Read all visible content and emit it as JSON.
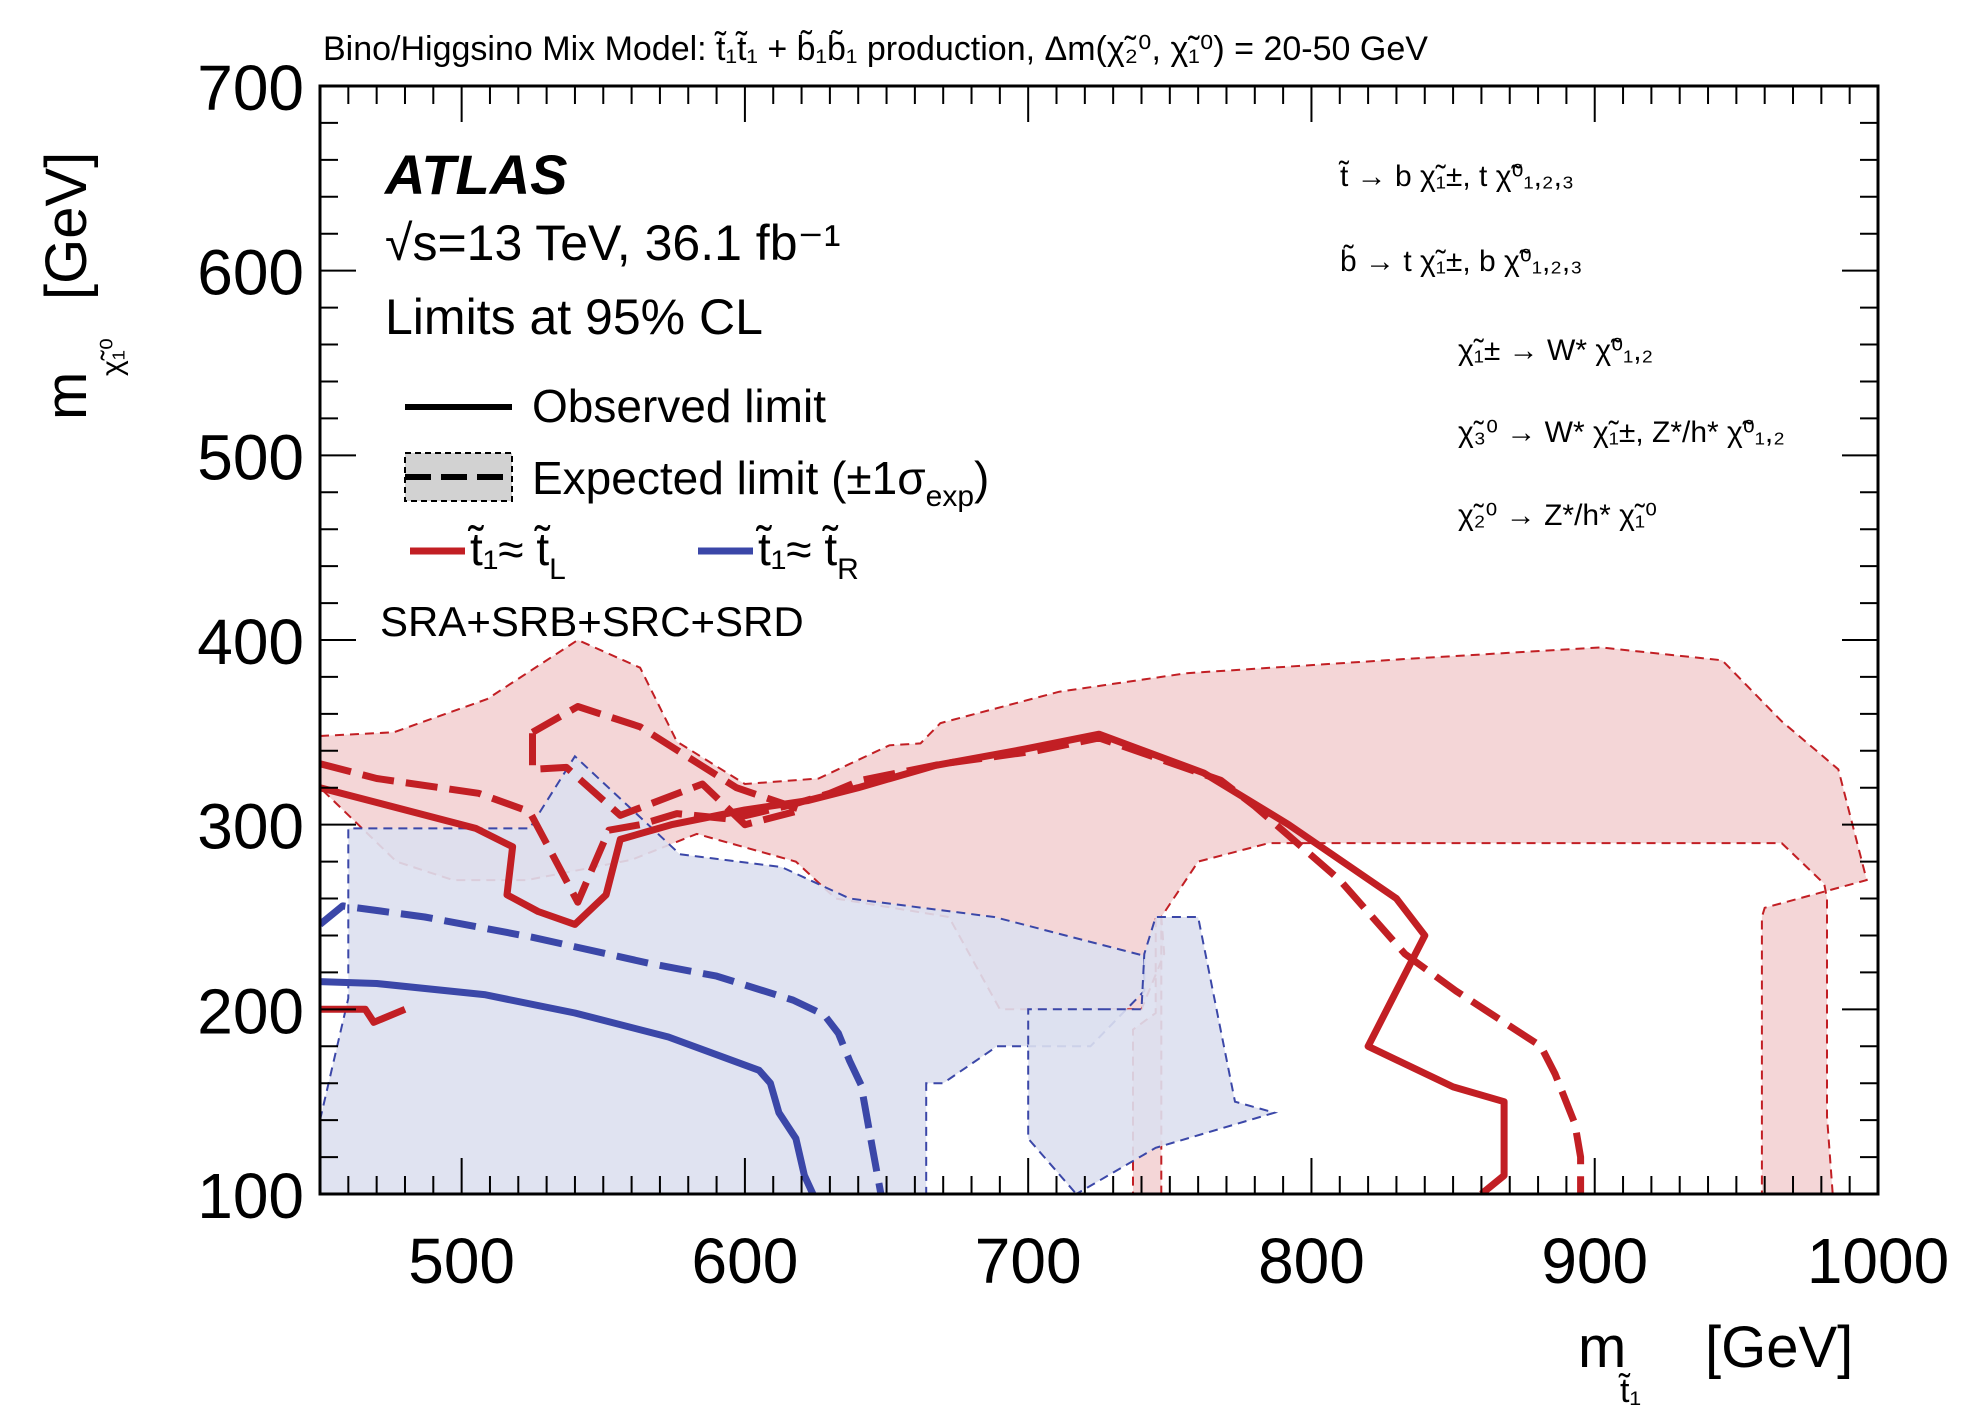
{
  "chart_data": {
    "type": "line",
    "title": "Bino/Higgsino Mix Model:  t̃₁t̃₁ + b̃₁b̃₁ production, Δm(χ̃₂⁰, χ̃₁⁰) = 20-50 GeV",
    "xlabel": "m",
    "xlabel_sub": "t̃₁",
    "xlabel_unit": "[GeV]",
    "ylabel": "m",
    "ylabel_sub": "χ̃₁⁰",
    "ylabel_unit": "[GeV]",
    "xlim": [
      450,
      1000
    ],
    "ylim": [
      100,
      700
    ],
    "x_ticks": [
      "500",
      "600",
      "700",
      "800",
      "900",
      "1000"
    ],
    "y_ticks": [
      "100",
      "200",
      "300",
      "400",
      "500",
      "600",
      "700"
    ],
    "x_tick_values": [
      500,
      600,
      700,
      800,
      900,
      1000
    ],
    "y_tick_values": [
      100,
      200,
      300,
      400,
      500,
      600,
      700
    ],
    "colors": {
      "red": "#c21f24",
      "blue": "#3b47a8",
      "red_band": "#f2cfd0",
      "blue_band": "#dde0ef",
      "overlap_band": "#d9bcc8"
    },
    "atlas_label": "ATLAS",
    "energy_label": "√s=13 TeV, 36.1 fb⁻¹",
    "cl_label": "Limits at 95% CL",
    "legend": {
      "observed": "Observed limit",
      "expected": "Expected limit (±1σ",
      "expected_sub": "exp",
      "expected_close": ")",
      "red_series": "t̃₁≈ t̃",
      "red_series_sub": "L",
      "blue_series": "t̃₁≈ t̃",
      "blue_series_sub": "R",
      "regions": "SRA+SRB+SRC+SRD"
    },
    "decays": [
      "t̃  →  b χ̃₁±, t χ̃⁰₁,₂,₃",
      "b̃  →  t χ̃₁±, b χ̃⁰₁,₂,₃",
      "χ̃₁± → W* χ̃⁰₁,₂",
      "χ̃₃⁰ → W* χ̃₁±, Z*/h* χ̃⁰₁,₂",
      "χ̃₂⁰ → Z*/h* χ̃₁⁰"
    ],
    "series": [
      {
        "name": "tL expected band",
        "kind": "band",
        "color": "red",
        "points": [
          [
            450,
            348
          ],
          [
            476,
            350
          ],
          [
            509,
            368
          ],
          [
            541,
            400
          ],
          [
            563,
            385
          ],
          [
            576,
            345
          ],
          [
            600,
            322
          ],
          [
            626,
            325
          ],
          [
            651,
            343
          ],
          [
            662,
            344
          ],
          [
            669,
            355
          ],
          [
            711,
            372
          ],
          [
            756,
            382
          ],
          [
            836,
            390
          ],
          [
            902,
            396
          ],
          [
            945,
            389
          ],
          [
            966,
            356
          ],
          [
            986,
            330
          ],
          [
            996,
            270
          ],
          [
            960,
            255
          ],
          [
            959,
            250
          ],
          [
            959,
            100
          ],
          [
            984,
            100
          ],
          [
            982,
            142
          ],
          [
            982,
            260
          ],
          [
            981,
            268
          ],
          [
            966,
            290
          ],
          [
            910,
            290
          ],
          [
            853,
            290
          ],
          [
            785,
            290
          ],
          [
            760,
            280
          ],
          [
            747,
            250
          ],
          [
            747,
            100
          ],
          [
            737,
            100
          ],
          [
            737,
            164
          ],
          [
            737,
            189
          ],
          [
            745,
            198
          ],
          [
            745,
            250
          ],
          [
            747,
            250
          ],
          [
            748,
            230
          ],
          [
            740,
            200
          ],
          [
            726,
            200
          ],
          [
            700,
            200
          ],
          [
            690,
            200
          ],
          [
            690,
            200
          ],
          [
            672,
            250
          ],
          [
            632,
            260
          ],
          [
            618,
            280
          ],
          [
            583,
            295
          ],
          [
            560,
            281
          ],
          [
            523,
            270
          ],
          [
            497,
            270
          ],
          [
            477,
            280
          ],
          [
            450,
            320
          ]
        ]
      },
      {
        "name": "tL expected band inner",
        "kind": "hole",
        "color": "red",
        "points": [
          [
            702,
            100
          ],
          [
            737,
            100
          ],
          [
            737,
            188
          ],
          [
            745,
            198
          ],
          [
            748,
            231
          ],
          [
            740,
            248
          ],
          [
            702,
            248
          ],
          [
            680,
            250
          ],
          [
            670,
            255
          ],
          [
            702,
            248
          ]
        ]
      },
      {
        "name": "tR expected band",
        "kind": "band",
        "color": "blue",
        "points": [
          [
            450,
            140
          ],
          [
            460,
            206
          ],
          [
            460,
            298
          ],
          [
            524,
            298
          ],
          [
            540,
            337
          ],
          [
            577,
            284
          ],
          [
            613,
            277
          ],
          [
            637,
            260
          ],
          [
            688,
            250
          ],
          [
            741,
            229
          ],
          [
            741,
            210
          ],
          [
            722,
            180
          ],
          [
            689,
            180
          ],
          [
            670,
            160
          ],
          [
            664,
            160
          ],
          [
            664,
            100
          ],
          [
            636,
            100
          ],
          [
            622,
            100
          ],
          [
            588,
            100
          ],
          [
            578,
            100
          ],
          [
            545,
            100
          ],
          [
            510,
            100
          ],
          [
            450,
            100
          ]
        ]
      },
      {
        "name": "tR expected band tail",
        "kind": "band",
        "color": "blue",
        "points": [
          [
            726,
            200
          ],
          [
            740,
            200
          ],
          [
            741,
            230
          ],
          [
            745,
            250
          ],
          [
            760,
            250
          ],
          [
            773,
            150
          ],
          [
            787,
            144
          ],
          [
            745,
            125
          ],
          [
            717,
            100
          ],
          [
            700,
            100
          ],
          [
            717,
            100
          ],
          [
            700,
            130
          ],
          [
            700,
            200
          ]
        ]
      },
      {
        "name": "tL expected",
        "kind": "expected",
        "color": "red",
        "points": [
          [
            450,
            333
          ],
          [
            470,
            325
          ],
          [
            506,
            317
          ],
          [
            524,
            307
          ],
          [
            541,
            258
          ],
          [
            552,
            297
          ],
          [
            563,
            300
          ],
          [
            576,
            306
          ],
          [
            595,
            303
          ],
          [
            617,
            311
          ],
          [
            630,
            317
          ],
          [
            641,
            324
          ],
          [
            670,
            333
          ],
          [
            703,
            340
          ],
          [
            725,
            347
          ],
          [
            768,
            324
          ],
          [
            780,
            310
          ],
          [
            810,
            270
          ],
          [
            833,
            230
          ],
          [
            851,
            210
          ],
          [
            881,
            180
          ],
          [
            886,
            165
          ],
          [
            893,
            138
          ],
          [
            895,
            120
          ],
          [
            895,
            100
          ]
        ]
      },
      {
        "name": "tL expected upper",
        "kind": "expected",
        "color": "red",
        "points": [
          [
            525,
            350
          ],
          [
            541,
            364
          ],
          [
            563,
            353
          ],
          [
            597,
            320
          ],
          [
            620,
            308
          ],
          [
            600,
            300
          ],
          [
            585,
            322
          ],
          [
            556,
            305
          ],
          [
            537,
            331
          ],
          [
            525,
            330
          ],
          [
            525,
            350
          ]
        ]
      },
      {
        "name": "tL observed",
        "kind": "observed",
        "color": "red",
        "points": [
          [
            450,
            320
          ],
          [
            470,
            312
          ],
          [
            505,
            298
          ],
          [
            518,
            288
          ],
          [
            516,
            262
          ],
          [
            527,
            253
          ],
          [
            540,
            246
          ],
          [
            551,
            262
          ],
          [
            556,
            292
          ],
          [
            574,
            300
          ],
          [
            600,
            308
          ],
          [
            622,
            313
          ],
          [
            640,
            320
          ],
          [
            667,
            332
          ],
          [
            699,
            341
          ],
          [
            725,
            349
          ],
          [
            762,
            328
          ],
          [
            792,
            300
          ],
          [
            830,
            260
          ],
          [
            840,
            240
          ],
          [
            830,
            210
          ],
          [
            820,
            180
          ],
          [
            850,
            158
          ],
          [
            868,
            150
          ],
          [
            868,
            110
          ],
          [
            860,
            100
          ]
        ]
      },
      {
        "name": "tL observed lower",
        "kind": "observed",
        "color": "red",
        "points": [
          [
            450,
            200
          ],
          [
            466,
            200
          ],
          [
            469,
            193
          ],
          [
            480,
            200
          ]
        ]
      },
      {
        "name": "tR expected",
        "kind": "expected",
        "color": "blue",
        "points": [
          [
            450,
            246
          ],
          [
            458,
            256
          ],
          [
            487,
            250
          ],
          [
            525,
            239
          ],
          [
            566,
            225
          ],
          [
            590,
            218
          ],
          [
            617,
            205
          ],
          [
            628,
            197
          ],
          [
            633,
            187
          ],
          [
            637,
            172
          ],
          [
            641,
            159
          ],
          [
            645,
            125
          ],
          [
            648,
            100
          ]
        ]
      },
      {
        "name": "tR observed",
        "kind": "observed",
        "color": "blue",
        "points": [
          [
            450,
            215
          ],
          [
            470,
            214
          ],
          [
            508,
            208
          ],
          [
            540,
            198
          ],
          [
            573,
            185
          ],
          [
            605,
            167
          ],
          [
            609,
            160
          ],
          [
            612,
            144
          ],
          [
            618,
            130
          ],
          [
            621,
            110
          ],
          [
            624,
            100
          ]
        ]
      }
    ]
  }
}
